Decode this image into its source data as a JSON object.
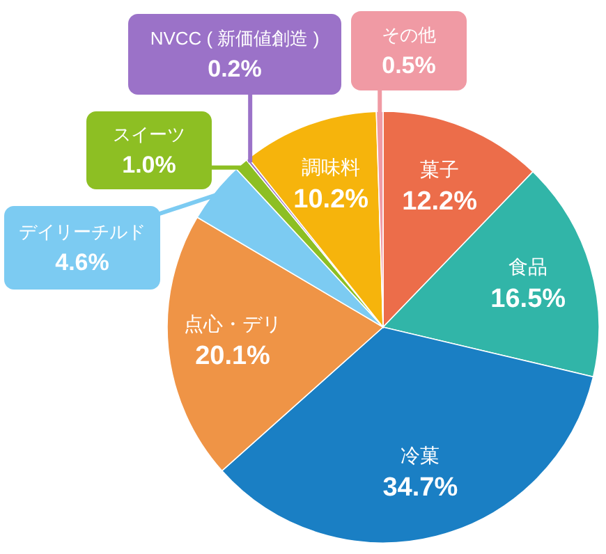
{
  "chart_data": {
    "type": "pie",
    "categories": [
      "菓子",
      "食品",
      "冷菓",
      "点心・デリ",
      "デイリーチルド",
      "スイーツ",
      "NVCC ( 新価値創造 )",
      "調味料",
      "その他"
    ],
    "values": [
      12.2,
      16.5,
      34.7,
      20.1,
      4.6,
      1.0,
      0.2,
      10.2,
      0.5
    ],
    "colors": [
      "#ec6d4a",
      "#31b5a8",
      "#1a7fc4",
      "#ef9446",
      "#7ccbf2",
      "#8dbf23",
      "#9b72c8",
      "#f6b40c",
      "#f09aa4"
    ],
    "value_labels": [
      "12.2%",
      "16.5%",
      "34.7%",
      "20.1%",
      "4.6%",
      "1.0%",
      "0.2%",
      "10.2%",
      "0.5%"
    ]
  }
}
